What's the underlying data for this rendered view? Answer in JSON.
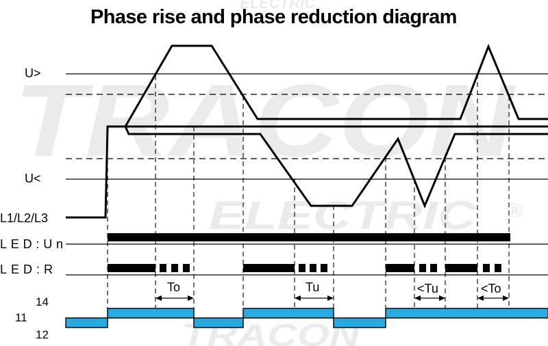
{
  "title": "Phase rise and phase reduction diagram",
  "watermark": {
    "brand": "TRACON",
    "sub": "ELECTRIC",
    "reg": "®"
  },
  "levels": {
    "upper": "U>",
    "lower": "U<"
  },
  "signals": {
    "phases": "L1/L2/L3",
    "led_un": "LED:Un",
    "led_r": "LED:R"
  },
  "timers": {
    "to": "To",
    "tu": "Tu",
    "lt_tu": "<Tu",
    "lt_to": "<To"
  },
  "contacts": {
    "common": "11",
    "no": "14",
    "nc": "12"
  },
  "colors": {
    "line": "#000000",
    "relay_fill": "#29abe2",
    "watermark": "#ebebeb"
  }
}
